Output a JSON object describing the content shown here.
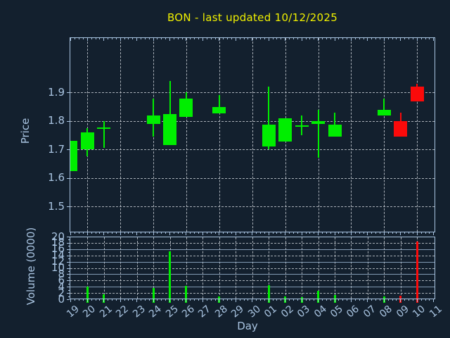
{
  "title": "BON - last updated 10/12/2025",
  "colors": {
    "background": "#13202e",
    "axis_frame": "#a9c4e1",
    "tick_label": "#a9c4e1",
    "title_text": "#f0f000",
    "grid": "#c3c8cf",
    "up": "#00ee00",
    "down": "#fb0a0a"
  },
  "price_axis": {
    "title": "Price",
    "tick_labels": [
      "1.5",
      "1.6",
      "1.7",
      "1.8",
      "1.9"
    ],
    "range_min": 1.409,
    "range_max": 2.093
  },
  "volume_axis": {
    "title": "Volume (0000)",
    "tick_labels": [
      "0",
      "2",
      "4",
      "6",
      "8",
      "10",
      "12",
      "14",
      "16",
      "18",
      "20"
    ],
    "range_min": 0,
    "range_max": 20
  },
  "x_axis": {
    "title": "Day",
    "categories": [
      "19",
      "20",
      "21",
      "22",
      "23",
      "24",
      "25",
      "26",
      "27",
      "28",
      "29",
      "30",
      "01",
      "02",
      "03",
      "04",
      "05",
      "06",
      "07",
      "08",
      "09",
      "10",
      "11"
    ]
  },
  "chart_data": {
    "type": "candlestick",
    "title": "BON - last updated 10/12/2025",
    "xlabel": "Day",
    "ylabel_price": "Price",
    "ylabel_volume": "Volume (0000)",
    "price_ylim": [
      1.409,
      2.093
    ],
    "volume_ylim": [
      0,
      20
    ],
    "grid": true,
    "entries": [
      {
        "day": "19",
        "open": 1.625,
        "high": 1.73,
        "low": 1.625,
        "close": 1.73,
        "volume": 0,
        "direction": "up"
      },
      {
        "day": "20",
        "open": 1.7,
        "high": 1.775,
        "low": 1.675,
        "close": 1.76,
        "volume": 4.0,
        "direction": "up"
      },
      {
        "day": "21",
        "open": 1.778,
        "high": 1.8,
        "low": 1.705,
        "close": 1.778,
        "volume": 1.5,
        "direction": "up"
      },
      {
        "day": "24",
        "open": 1.79,
        "high": 1.878,
        "low": 1.745,
        "close": 1.818,
        "volume": 3.5,
        "direction": "up"
      },
      {
        "day": "25",
        "open": 1.715,
        "high": 1.94,
        "low": 1.715,
        "close": 1.825,
        "volume": 15.3,
        "direction": "up"
      },
      {
        "day": "26",
        "open": 1.815,
        "high": 1.9,
        "low": 1.815,
        "close": 1.878,
        "volume": 4.3,
        "direction": "up"
      },
      {
        "day": "28",
        "open": 1.825,
        "high": 1.89,
        "low": 1.825,
        "close": 1.848,
        "volume": 1.0,
        "direction": "up"
      },
      {
        "day": "01",
        "open": 1.71,
        "high": 1.92,
        "low": 1.7,
        "close": 1.788,
        "volume": 4.6,
        "direction": "up"
      },
      {
        "day": "02",
        "open": 1.728,
        "high": 1.81,
        "low": 1.728,
        "close": 1.81,
        "volume": 0.9,
        "direction": "up"
      },
      {
        "day": "03",
        "open": 1.778,
        "high": 1.82,
        "low": 1.75,
        "close": 1.785,
        "volume": 0.7,
        "direction": "up"
      },
      {
        "day": "04",
        "open": 1.79,
        "high": 1.838,
        "low": 1.67,
        "close": 1.8,
        "volume": 2.6,
        "direction": "up"
      },
      {
        "day": "05",
        "open": 1.745,
        "high": 1.828,
        "low": 1.745,
        "close": 1.788,
        "volume": 1.3,
        "direction": "up"
      },
      {
        "day": "08",
        "open": 1.82,
        "high": 1.878,
        "low": 1.82,
        "close": 1.84,
        "volume": 0.8,
        "direction": "up"
      },
      {
        "day": "09",
        "open": 1.8,
        "high": 1.83,
        "low": 1.745,
        "close": 1.745,
        "volume": 1.1,
        "direction": "down"
      },
      {
        "day": "10",
        "open": 1.92,
        "high": 1.93,
        "low": 1.868,
        "close": 1.868,
        "volume": 18.4,
        "direction": "down"
      }
    ]
  }
}
